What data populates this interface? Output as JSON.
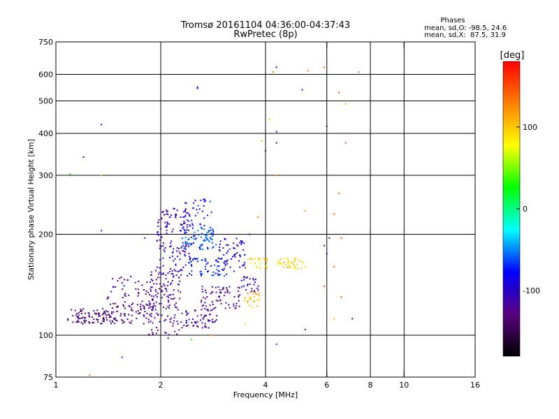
{
  "chart_data": {
    "type": "scatter",
    "title_line1": "Tromsø 20161104 04:36:00-04:37:43",
    "title_line2": "RwPretec (8p)",
    "xlabel": "Frequency [MHz]",
    "ylabel": "Stationary phase Virtual Height [km]",
    "x_scale": "log",
    "y_scale": "log",
    "xlim": [
      1,
      16
    ],
    "ylim": [
      75,
      750
    ],
    "x_ticks": [
      1,
      2,
      4,
      6,
      8,
      10,
      16
    ],
    "x_tick_labels": [
      "1",
      "2",
      "4",
      "6",
      "8",
      "10",
      "16"
    ],
    "x_grid": [
      2,
      4,
      6,
      8,
      10
    ],
    "y_ticks": [
      75,
      100,
      200,
      300,
      400,
      500,
      600,
      750
    ],
    "y_tick_labels": [
      "75",
      "100",
      "200",
      "300",
      "400",
      "500",
      "600",
      "750"
    ],
    "y_grid": [
      100,
      200,
      300,
      400,
      500,
      600
    ],
    "grid": true,
    "stats": {
      "title": "Phases",
      "line_o": "mean, sd,O: -98.5, 24.6",
      "line_x": "mean, sd,X:  87.5, 31.9"
    },
    "colorbar": {
      "label": "[deg]",
      "range": [
        -180,
        180
      ],
      "tick_values": [
        100,
        0,
        -100
      ],
      "tick_labels": [
        "100",
        "0",
        "-100"
      ],
      "colors": [
        "#000000",
        "#5a0080",
        "#0000ff",
        "#00ffff",
        "#00ff00",
        "#ffff00",
        "#ff8000",
        "#ff0000"
      ]
    },
    "clusters": [
      {
        "f": [
          1.08,
          1.45
        ],
        "h": [
          108,
          120
        ],
        "phase": -135,
        "n": 90
      },
      {
        "f": [
          1.45,
          1.9
        ],
        "h": [
          108,
          125
        ],
        "phase": -130,
        "n": 70
      },
      {
        "f": [
          1.4,
          1.95
        ],
        "h": [
          120,
          150
        ],
        "phase": -125,
        "n": 60
      },
      {
        "f": [
          1.85,
          2.3
        ],
        "h": [
          100,
          160
        ],
        "phase": -120,
        "n": 120
      },
      {
        "f": [
          1.95,
          2.45
        ],
        "h": [
          150,
          240
        ],
        "phase": -105,
        "n": 140
      },
      {
        "f": [
          2.3,
          2.9
        ],
        "h": [
          105,
          120
        ],
        "phase": -115,
        "n": 60
      },
      {
        "f": [
          2.6,
          3.4
        ],
        "h": [
          120,
          140
        ],
        "phase": -120,
        "n": 70
      },
      {
        "f": [
          2.3,
          2.9
        ],
        "h": [
          180,
          210
        ],
        "phase": -60,
        "n": 80
      },
      {
        "f": [
          2.3,
          2.8
        ],
        "h": [
          210,
          255
        ],
        "phase": -85,
        "n": 40
      },
      {
        "f": [
          2.4,
          3.1
        ],
        "h": [
          150,
          170
        ],
        "phase": -75,
        "n": 60
      },
      {
        "f": [
          2.9,
          3.5
        ],
        "h": [
          155,
          195
        ],
        "phase": -95,
        "n": 60
      },
      {
        "f": [
          3.45,
          3.85
        ],
        "h": [
          120,
          135
        ],
        "phase": 110,
        "n": 25
      },
      {
        "f": [
          3.4,
          3.85
        ],
        "h": [
          135,
          150
        ],
        "phase": -105,
        "n": 25
      },
      {
        "f": [
          3.5,
          4.05
        ],
        "h": [
          157,
          170
        ],
        "phase": 95,
        "n": 25
      },
      {
        "f": [
          4.3,
          5.2
        ],
        "h": [
          158,
          170
        ],
        "phase": 95,
        "n": 40
      }
    ],
    "sparse_points": [
      {
        "x": 2.55,
        "y": 550,
        "phase": -90
      },
      {
        "x": 2.55,
        "y": 545,
        "phase": -90
      },
      {
        "x": 1.35,
        "y": 425,
        "phase": -80
      },
      {
        "x": 1.2,
        "y": 340,
        "phase": -100
      },
      {
        "x": 1.35,
        "y": 205,
        "phase": -70
      },
      {
        "x": 1.1,
        "y": 302,
        "phase": 30
      },
      {
        "x": 1.35,
        "y": 300,
        "phase": 110
      },
      {
        "x": 4.3,
        "y": 630,
        "phase": -100
      },
      {
        "x": 4.2,
        "y": 610,
        "phase": 140
      },
      {
        "x": 4.1,
        "y": 440,
        "phase": 60
      },
      {
        "x": 4.3,
        "y": 405,
        "phase": -100
      },
      {
        "x": 4.3,
        "y": 375,
        "phase": -120
      },
      {
        "x": 3.9,
        "y": 380,
        "phase": 110
      },
      {
        "x": 4.0,
        "y": 355,
        "phase": -110
      },
      {
        "x": 4.3,
        "y": 300,
        "phase": 120
      },
      {
        "x": 5.1,
        "y": 540,
        "phase": -70
      },
      {
        "x": 5.3,
        "y": 615,
        "phase": 130
      },
      {
        "x": 5.9,
        "y": 630,
        "phase": 140
      },
      {
        "x": 6.5,
        "y": 530,
        "phase": 150
      },
      {
        "x": 6.8,
        "y": 490,
        "phase": 110
      },
      {
        "x": 7.4,
        "y": 610,
        "phase": 130
      },
      {
        "x": 6.0,
        "y": 420,
        "phase": -110
      },
      {
        "x": 6.8,
        "y": 375,
        "phase": 150
      },
      {
        "x": 6.5,
        "y": 265,
        "phase": 140
      },
      {
        "x": 5.2,
        "y": 235,
        "phase": 110
      },
      {
        "x": 6.3,
        "y": 230,
        "phase": 150
      },
      {
        "x": 6.1,
        "y": 195,
        "phase": -100
      },
      {
        "x": 6.6,
        "y": 195,
        "phase": 150
      },
      {
        "x": 5.9,
        "y": 185,
        "phase": -130
      },
      {
        "x": 6.0,
        "y": 175,
        "phase": -140
      },
      {
        "x": 6.3,
        "y": 160,
        "phase": 140
      },
      {
        "x": 6.6,
        "y": 130,
        "phase": 150
      },
      {
        "x": 6.3,
        "y": 112,
        "phase": 100
      },
      {
        "x": 7.1,
        "y": 112,
        "phase": -150
      },
      {
        "x": 5.2,
        "y": 104,
        "phase": -110
      },
      {
        "x": 4.3,
        "y": 94,
        "phase": -60
      },
      {
        "x": 5.9,
        "y": 140,
        "phase": 150
      },
      {
        "x": 1.55,
        "y": 86,
        "phase": -70
      },
      {
        "x": 1.25,
        "y": 76,
        "phase": 130
      },
      {
        "x": 3.8,
        "y": 225,
        "phase": 130
      },
      {
        "x": 3.6,
        "y": 200,
        "phase": -110
      },
      {
        "x": 3.5,
        "y": 108,
        "phase": 90
      },
      {
        "x": 2.8,
        "y": 100,
        "phase": 120
      },
      {
        "x": 2.1,
        "y": 98,
        "phase": -80
      },
      {
        "x": 2.45,
        "y": 97,
        "phase": 40
      },
      {
        "x": 1.8,
        "y": 195,
        "phase": -70
      }
    ]
  }
}
